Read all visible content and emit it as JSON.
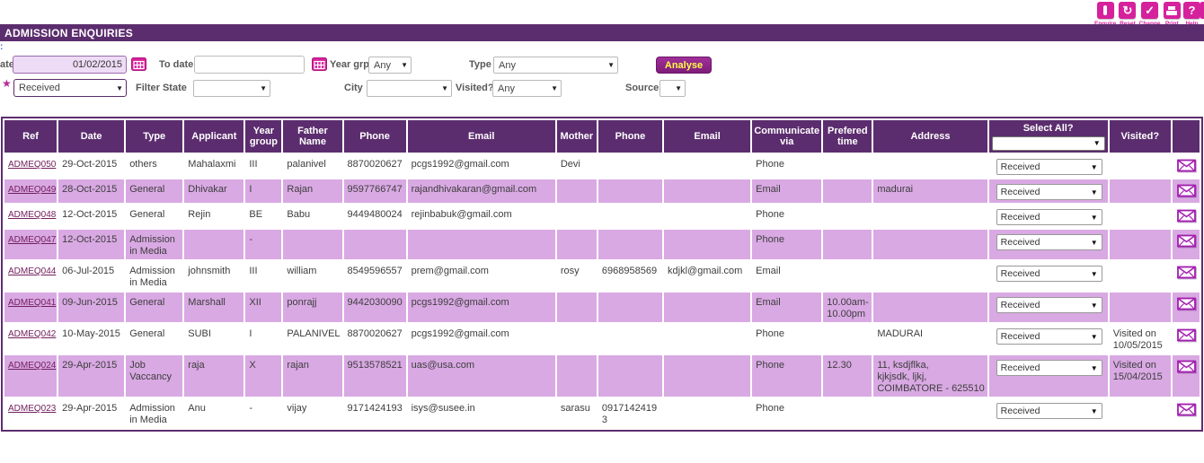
{
  "title": "ADMISSION ENQUIRIES",
  "artifacts": {
    "edge_mark": ":"
  },
  "toolbar": {
    "buttons": [
      {
        "label": "Enquire",
        "icon": "info-icon"
      },
      {
        "label": "Reset",
        "icon": "reset-icon"
      },
      {
        "label": "Change",
        "icon": "check-icon"
      },
      {
        "label": "Print",
        "icon": "print-icon"
      },
      {
        "label": "Help",
        "icon": "help-icon"
      }
    ]
  },
  "filters": {
    "from_date_label": "ate",
    "from_date_value": "01/02/2015",
    "to_date_label": "To date",
    "to_date_value": "",
    "year_grp_label": "Year grp",
    "year_grp_value": "Any",
    "type_label": "Type",
    "type_value": "Any",
    "analyse_label": "Analyse",
    "status_value": "Received",
    "filter_state_label": "Filter State",
    "filter_state_value": "",
    "city_label": "City",
    "city_value": "",
    "visited_label": "Visited?",
    "visited_value": "Any",
    "source_label": "Source",
    "source_value": ""
  },
  "colors": {
    "header_purple": "#5c2d6e",
    "icon_magenta": "#d6219c",
    "row_pink": "#d9a9e3",
    "link_plum": "#73205e",
    "analyse_yellow": "#ffff43",
    "envelope_purple": "#a21caf"
  },
  "table": {
    "headers": [
      "Ref",
      "Date",
      "Type",
      "Applicant",
      "Year group",
      "Father Name",
      "Phone",
      "Email",
      "Mother",
      "Phone",
      "Email",
      "Communicate via",
      "Prefered time",
      "Address",
      "Select All?",
      "Visited?",
      ""
    ],
    "select_all_value": "",
    "rows": [
      {
        "ref": "ADMEQ050",
        "date": "29-Oct-2015",
        "type": "others",
        "applicant": "Mahalaxmi",
        "year_group": "III",
        "father_name": "palanivel",
        "father_phone": "8870020627",
        "father_email": "pcgs1992@gmail.com",
        "mother": "Devi",
        "mother_phone": "",
        "mother_email": "",
        "communicate_via": "Phone",
        "prefered_time": "",
        "address": "",
        "status": "Received",
        "visited": ""
      },
      {
        "ref": "ADMEQ049",
        "date": "28-Oct-2015",
        "type": "General",
        "applicant": "Dhivakar",
        "year_group": "I",
        "father_name": "Rajan",
        "father_phone": "9597766747",
        "father_email": "rajandhivakaran@gmail.com",
        "mother": "",
        "mother_phone": "",
        "mother_email": "",
        "communicate_via": "Email",
        "prefered_time": "",
        "address": "madurai",
        "status": "Received",
        "visited": ""
      },
      {
        "ref": "ADMEQ048",
        "date": "12-Oct-2015",
        "type": "General",
        "applicant": "Rejin",
        "year_group": "BE",
        "father_name": "Babu",
        "father_phone": "9449480024",
        "father_email": "rejinbabuk@gmail.com",
        "mother": "",
        "mother_phone": "",
        "mother_email": "",
        "communicate_via": "Phone",
        "prefered_time": "",
        "address": "",
        "status": "Received",
        "visited": ""
      },
      {
        "ref": "ADMEQ047",
        "date": "12-Oct-2015",
        "type": "Admission in Media",
        "applicant": "",
        "year_group": "-",
        "father_name": "",
        "father_phone": "",
        "father_email": "",
        "mother": "",
        "mother_phone": "",
        "mother_email": "",
        "communicate_via": "Phone",
        "prefered_time": "",
        "address": "",
        "status": "Received",
        "visited": ""
      },
      {
        "ref": "ADMEQ044",
        "date": "06-Jul-2015",
        "type": "Admission in Media",
        "applicant": "johnsmith",
        "year_group": "III",
        "father_name": "william",
        "father_phone": "8549596557",
        "father_email": "prem@gmail.com",
        "mother": "rosy",
        "mother_phone": "6968958569",
        "mother_email": "kdjkl@gmail.com",
        "communicate_via": "Email",
        "prefered_time": "",
        "address": "",
        "status": "Received",
        "visited": ""
      },
      {
        "ref": "ADMEQ041",
        "date": "09-Jun-2015",
        "type": "General",
        "applicant": "Marshall",
        "year_group": "XII",
        "father_name": "ponrajj",
        "father_phone": "9442030090",
        "father_email": "pcgs1992@gmail.com",
        "mother": "",
        "mother_phone": "",
        "mother_email": "",
        "communicate_via": "Email",
        "prefered_time": "10.00am-10.00pm",
        "address": "",
        "status": "Received",
        "visited": ""
      },
      {
        "ref": "ADMEQ042",
        "date": "10-May-2015",
        "type": "General",
        "applicant": "SUBI",
        "year_group": "I",
        "father_name": "PALANIVEL",
        "father_phone": "8870020627",
        "father_email": "pcgs1992@gmail.com",
        "mother": "",
        "mother_phone": "",
        "mother_email": "",
        "communicate_via": "Phone",
        "prefered_time": "",
        "address": "MADURAI",
        "status": "Received",
        "visited": "Visited on 10/05/2015"
      },
      {
        "ref": "ADMEQ024",
        "date": "29-Apr-2015",
        "type": "Job Vaccancy",
        "applicant": "raja",
        "year_group": "X",
        "father_name": "rajan",
        "father_phone": "9513578521",
        "father_email": "uas@usa.com",
        "mother": "",
        "mother_phone": "",
        "mother_email": "",
        "communicate_via": "Phone",
        "prefered_time": "12.30",
        "address": "11, ksdjflka,\nkjkjsdk, ljkj,\nCOIMBATORE - 625510",
        "status": "Received",
        "visited": "Visited on 15/04/2015"
      },
      {
        "ref": "ADMEQ023",
        "date": "29-Apr-2015",
        "type": "Admission in Media",
        "applicant": "Anu",
        "year_group": "-",
        "father_name": "vijay",
        "father_phone": "9171424193",
        "father_email": "isys@susee.in",
        "mother": "sarasu",
        "mother_phone": "09171424193",
        "mother_email": "",
        "communicate_via": "Phone",
        "prefered_time": "",
        "address": "",
        "status": "Received",
        "visited": ""
      }
    ]
  }
}
